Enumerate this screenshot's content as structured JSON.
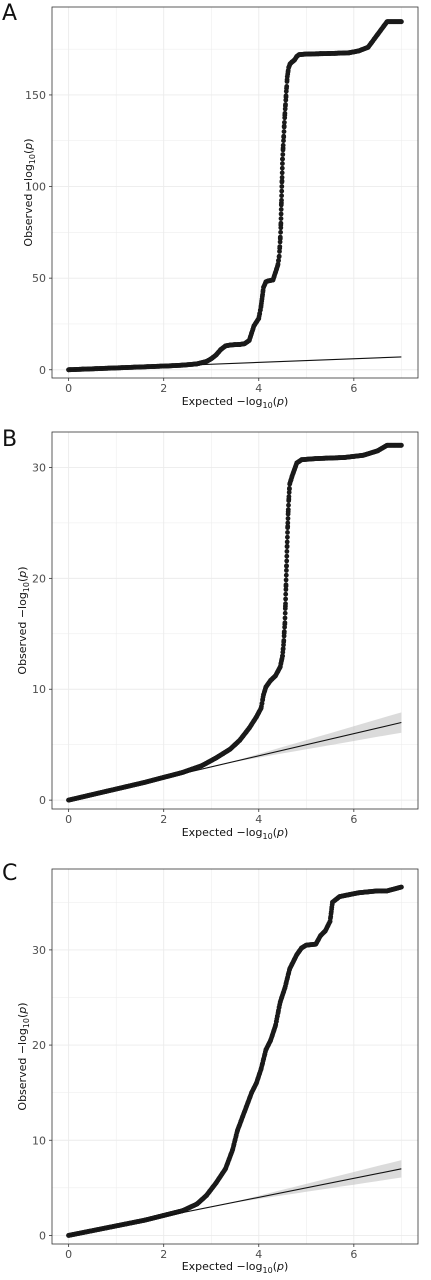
{
  "chart_data": [
    {
      "panel": "A",
      "type": "scatter",
      "xlabel": "Expected  −log10(p)",
      "ylabel": "Observed  −log10(p)",
      "xlim": [
        -0.35,
        7.35
      ],
      "ylim": [
        -4.5,
        198
      ],
      "x_ticks": [
        0,
        2,
        4,
        6
      ],
      "y_ticks": [
        0,
        50,
        100,
        150
      ],
      "grid": true,
      "reference_line": {
        "x": [
          0,
          7
        ],
        "y": [
          0,
          7
        ]
      },
      "confidence_band": false,
      "points": [
        [
          0,
          0
        ],
        [
          0.3,
          0.3
        ],
        [
          0.6,
          0.6
        ],
        [
          0.9,
          0.9
        ],
        [
          1.2,
          1.2
        ],
        [
          1.5,
          1.5
        ],
        [
          1.8,
          1.8
        ],
        [
          2.1,
          2.1
        ],
        [
          2.4,
          2.5
        ],
        [
          2.7,
          3.2
        ],
        [
          2.9,
          4.5
        ],
        [
          3.0,
          6
        ],
        [
          3.1,
          8
        ],
        [
          3.2,
          11
        ],
        [
          3.3,
          13
        ],
        [
          3.4,
          13.5
        ],
        [
          3.5,
          13.7
        ],
        [
          3.6,
          13.8
        ],
        [
          3.7,
          14.2
        ],
        [
          3.8,
          16
        ],
        [
          3.85,
          20
        ],
        [
          3.9,
          24
        ],
        [
          3.95,
          26
        ],
        [
          4.0,
          28
        ],
        [
          4.05,
          35
        ],
        [
          4.1,
          45
        ],
        [
          4.15,
          48
        ],
        [
          4.2,
          48.5
        ],
        [
          4.3,
          49
        ],
        [
          4.35,
          53
        ],
        [
          4.4,
          57
        ],
        [
          4.43,
          62
        ],
        [
          4.46,
          75
        ],
        [
          4.48,
          95
        ],
        [
          4.5,
          115
        ],
        [
          4.52,
          125
        ],
        [
          4.55,
          140
        ],
        [
          4.58,
          152
        ],
        [
          4.6,
          160
        ],
        [
          4.63,
          165
        ],
        [
          4.66,
          167
        ],
        [
          4.7,
          168
        ],
        [
          4.75,
          169
        ],
        [
          4.8,
          171
        ],
        [
          4.85,
          172
        ],
        [
          5.0,
          172.3
        ],
        [
          5.3,
          172.5
        ],
        [
          5.6,
          172.7
        ],
        [
          5.9,
          173
        ],
        [
          6.1,
          174
        ],
        [
          6.3,
          176
        ],
        [
          6.7,
          190
        ],
        [
          7.0,
          190
        ]
      ]
    },
    {
      "panel": "B",
      "type": "scatter",
      "xlabel": "Expected  −log10(p)",
      "ylabel": "Observed  −log10(p)",
      "xlim": [
        -0.35,
        7.35
      ],
      "ylim": [
        -0.8,
        33.2
      ],
      "x_ticks": [
        0,
        2,
        4,
        6
      ],
      "y_ticks": [
        0,
        10,
        20,
        30
      ],
      "grid": true,
      "reference_line": {
        "x": [
          0,
          7
        ],
        "y": [
          0,
          7
        ]
      },
      "confidence_band": true,
      "points": [
        [
          0,
          0
        ],
        [
          0.4,
          0.4
        ],
        [
          0.8,
          0.8
        ],
        [
          1.2,
          1.2
        ],
        [
          1.6,
          1.6
        ],
        [
          2.0,
          2.05
        ],
        [
          2.4,
          2.5
        ],
        [
          2.8,
          3.1
        ],
        [
          3.1,
          3.8
        ],
        [
          3.4,
          4.6
        ],
        [
          3.6,
          5.4
        ],
        [
          3.8,
          6.5
        ],
        [
          3.95,
          7.5
        ],
        [
          4.05,
          8.3
        ],
        [
          4.1,
          9.5
        ],
        [
          4.15,
          10.2
        ],
        [
          4.25,
          10.8
        ],
        [
          4.35,
          11.2
        ],
        [
          4.45,
          12
        ],
        [
          4.5,
          13
        ],
        [
          4.52,
          14
        ],
        [
          4.55,
          16
        ],
        [
          4.57,
          19
        ],
        [
          4.59,
          22
        ],
        [
          4.61,
          25
        ],
        [
          4.63,
          27
        ],
        [
          4.65,
          28.5
        ],
        [
          4.7,
          29.2
        ],
        [
          4.75,
          29.8
        ],
        [
          4.8,
          30.4
        ],
        [
          4.9,
          30.7
        ],
        [
          5.2,
          30.8
        ],
        [
          5.5,
          30.85
        ],
        [
          5.8,
          30.9
        ],
        [
          6.0,
          31
        ],
        [
          6.2,
          31.1
        ],
        [
          6.5,
          31.5
        ],
        [
          6.7,
          32
        ],
        [
          7.0,
          32
        ]
      ]
    },
    {
      "panel": "C",
      "type": "scatter",
      "xlabel": "Expected  −log10(p)",
      "ylabel": "Observed  −log10(p)",
      "xlim": [
        -0.35,
        7.35
      ],
      "ylim": [
        -0.9,
        38.5
      ],
      "x_ticks": [
        0,
        2,
        4,
        6
      ],
      "y_ticks": [
        0,
        10,
        20,
        30
      ],
      "grid": true,
      "reference_line": {
        "x": [
          0,
          7
        ],
        "y": [
          0,
          7
        ]
      },
      "confidence_band": true,
      "points": [
        [
          0,
          0
        ],
        [
          0.4,
          0.4
        ],
        [
          0.8,
          0.8
        ],
        [
          1.2,
          1.2
        ],
        [
          1.6,
          1.6
        ],
        [
          2.0,
          2.1
        ],
        [
          2.4,
          2.6
        ],
        [
          2.7,
          3.3
        ],
        [
          2.9,
          4.2
        ],
        [
          3.1,
          5.5
        ],
        [
          3.3,
          7
        ],
        [
          3.45,
          9
        ],
        [
          3.55,
          11
        ],
        [
          3.7,
          13
        ],
        [
          3.85,
          15
        ],
        [
          3.95,
          16
        ],
        [
          4.05,
          17.5
        ],
        [
          4.15,
          19.5
        ],
        [
          4.25,
          20.5
        ],
        [
          4.35,
          22
        ],
        [
          4.45,
          24.5
        ],
        [
          4.55,
          26
        ],
        [
          4.65,
          28
        ],
        [
          4.8,
          29.5
        ],
        [
          4.9,
          30.2
        ],
        [
          5.0,
          30.5
        ],
        [
          5.2,
          30.6
        ],
        [
          5.3,
          31.5
        ],
        [
          5.4,
          32
        ],
        [
          5.5,
          33
        ],
        [
          5.55,
          35
        ],
        [
          5.7,
          35.6
        ],
        [
          5.9,
          35.8
        ],
        [
          6.1,
          36
        ],
        [
          6.3,
          36.1
        ],
        [
          6.5,
          36.2
        ],
        [
          6.7,
          36.2
        ],
        [
          7.0,
          36.6
        ]
      ]
    }
  ]
}
